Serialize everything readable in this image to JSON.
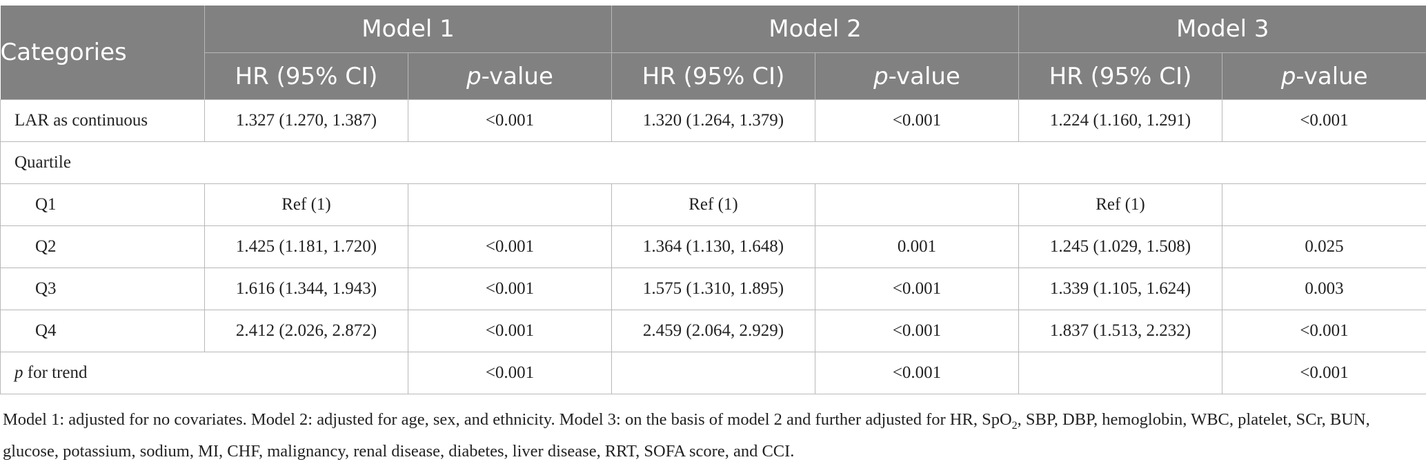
{
  "header": {
    "categories": "Categories",
    "models": [
      "Model 1",
      "Model 2",
      "Model 3"
    ],
    "hr_label": "HR (95% CI)",
    "p_italic": "p",
    "p_suffix": "-value"
  },
  "rows": {
    "continuous": {
      "label": "LAR as continuous",
      "m1_hr": "1.327 (1.270, 1.387)",
      "m1_p": "<0.001",
      "m2_hr": "1.320 (1.264, 1.379)",
      "m2_p": "<0.001",
      "m3_hr": "1.224 (1.160, 1.291)",
      "m3_p": "<0.001"
    },
    "quartile_label": "Quartile",
    "q1": {
      "label": "Q1",
      "m1_hr": "Ref (1)",
      "m1_p": "",
      "m2_hr": "Ref (1)",
      "m2_p": "",
      "m3_hr": "Ref (1)",
      "m3_p": ""
    },
    "q2": {
      "label": "Q2",
      "m1_hr": "1.425 (1.181, 1.720)",
      "m1_p": "<0.001",
      "m2_hr": "1.364 (1.130, 1.648)",
      "m2_p": "0.001",
      "m3_hr": "1.245 (1.029, 1.508)",
      "m3_p": "0.025"
    },
    "q3": {
      "label": "Q3",
      "m1_hr": "1.616 (1.344, 1.943)",
      "m1_p": "<0.001",
      "m2_hr": "1.575 (1.310, 1.895)",
      "m2_p": "<0.001",
      "m3_hr": "1.339 (1.105, 1.624)",
      "m3_p": "0.003"
    },
    "q4": {
      "label": "Q4",
      "m1_hr": "2.412 (2.026, 2.872)",
      "m1_p": "<0.001",
      "m2_hr": "2.459 (2.064, 2.929)",
      "m2_p": "<0.001",
      "m3_hr": "1.837 (1.513, 2.232)",
      "m3_p": "<0.001"
    },
    "trend": {
      "label_italic": "p",
      "label_rest": " for trend",
      "m1_p": "<0.001",
      "m2_hr": "",
      "m2_p": "<0.001",
      "m3_hr": "",
      "m3_p": "<0.001"
    }
  },
  "footnote": {
    "part1": "Model 1: adjusted for no covariates. Model 2: adjusted for age, sex, and ethnicity. Model 3: on the basis of model 2 and further adjusted for HR, SpO",
    "sub": "2",
    "part2": ", SBP, DBP, hemoglobin, WBC, platelet, SCr, BUN, glucose, potassium, sodium, MI, CHF, malignancy, renal disease, diabetes, liver disease, RRT, SOFA score, and CCI."
  }
}
